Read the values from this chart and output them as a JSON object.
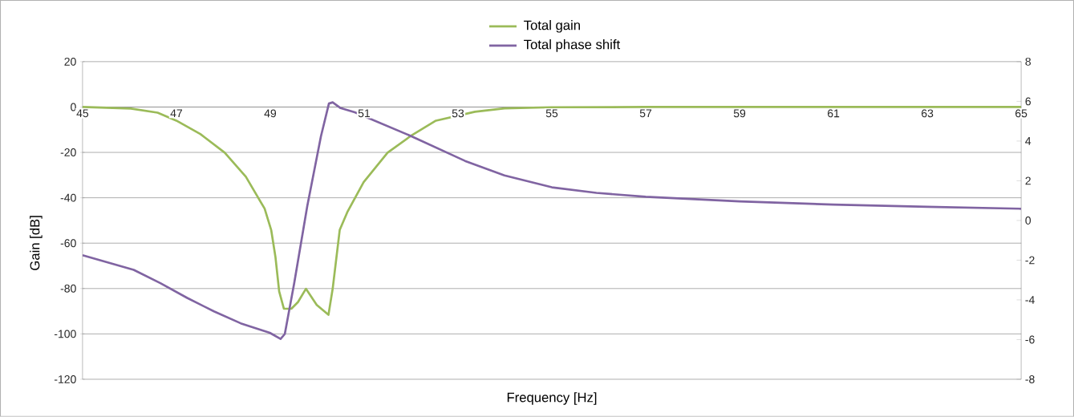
{
  "chart_data": {
    "type": "line",
    "xlabel": "Frequency [Hz]",
    "ylabel": "Gain [dB]",
    "xlim": [
      45,
      65
    ],
    "xticks": [
      45,
      47,
      49,
      51,
      53,
      55,
      57,
      59,
      61,
      63,
      65
    ],
    "ylim": [
      -120,
      20
    ],
    "yticks": [
      -120,
      -100,
      -80,
      -60,
      -40,
      -20,
      0,
      20
    ],
    "y2lim": [
      -8,
      8
    ],
    "y2ticks": [
      -8,
      -6,
      -4,
      -2,
      0,
      2,
      4,
      6,
      8
    ],
    "grid": "y",
    "legend": "top",
    "marker": "none",
    "line_style": "solid",
    "series": [
      {
        "name": "Total gain",
        "color": "#9bbb59",
        "x": [
          45,
          46.03,
          46.6,
          47.0,
          47.51,
          48.03,
          48.48,
          48.88,
          49.02,
          49.11,
          49.19,
          49.29,
          49.45,
          49.59,
          49.76,
          49.99,
          50.24,
          50.33,
          50.48,
          50.65,
          50.99,
          51.5,
          52.01,
          52.53,
          53.36,
          53.99,
          55,
          57,
          59,
          61,
          63,
          65
        ],
        "values": [
          0,
          -0.7,
          -2.5,
          -6,
          -11.9,
          -20.1,
          -30.7,
          -44.8,
          -54.2,
          -66,
          -81.3,
          -88.9,
          -88.9,
          -86,
          -80.1,
          -87.2,
          -91.6,
          -80.1,
          -54.2,
          -46,
          -33.1,
          -20.1,
          -12.5,
          -6,
          -2.1,
          -0.6,
          -0.1,
          0,
          0,
          0,
          0,
          0
        ]
      },
      {
        "name": "Total phase shift",
        "color": "#8064a2",
        "axis": "y2",
        "x": [
          45,
          46.09,
          46.66,
          47.23,
          47.8,
          48.37,
          48.99,
          49.22,
          49.31,
          49.51,
          49.79,
          50.08,
          50.25,
          50.33,
          50.5,
          50.8,
          52.01,
          53.15,
          53.99,
          55.0,
          55.95,
          57.0,
          59.0,
          61.0,
          63.0,
          65
        ],
        "values": [
          -1.75,
          -2.49,
          -3.16,
          -3.9,
          -4.58,
          -5.18,
          -5.66,
          -5.97,
          -5.72,
          -3.16,
          0.74,
          4.24,
          5.89,
          5.95,
          5.66,
          5.45,
          4.24,
          3.0,
          2.27,
          1.67,
          1.39,
          1.19,
          0.96,
          0.8,
          0.69,
          0.59
        ]
      }
    ]
  }
}
